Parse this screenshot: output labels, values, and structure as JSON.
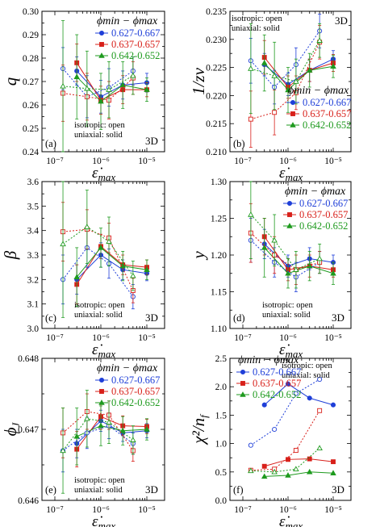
{
  "figure": {
    "x_axis_label": "ε̇max",
    "dim_label": "3D",
    "note_isotropic": "isotropic: open",
    "note_uniaxial": "uniaxial: solid",
    "legend_title": "ϕmin − ϕmax",
    "x_tick_labels": [
      "10⁻⁷",
      "10⁻⁶",
      "10⁻⁵"
    ]
  },
  "colors": {
    "0.627-0.667": "#1f3fd8",
    "0.637-0.657": "#d8201a",
    "0.642-0.652": "#1e9a1e"
  },
  "chart_data": [
    {
      "panel": "(a)",
      "type": "line",
      "ylabel": "q",
      "xscale": "log",
      "xlim": [
        1e-07,
        1e-05
      ],
      "ylim": [
        0.24,
        0.3
      ],
      "yticks": [
        0.24,
        0.25,
        0.26,
        0.27,
        0.28,
        0.29,
        0.3
      ],
      "ytick_labels": [
        "0.24",
        "0.25",
        "0.26",
        "0.27",
        "0.28",
        "0.29",
        "0.30"
      ],
      "legend_placement": "top-right",
      "note_placement": "bottom",
      "series": [
        {
          "name": "0.627-0.667",
          "style": "solid",
          "marker": "circle-filled",
          "x": [
            3e-07,
            1e-06,
            3e-06,
            1e-05
          ],
          "y": [
            0.2745,
            0.2635,
            0.2685,
            0.2695
          ],
          "err": [
            0.006,
            0.007,
            0.006,
            0.004
          ]
        },
        {
          "name": "0.637-0.657",
          "style": "solid",
          "marker": "square-filled",
          "x": [
            3e-07,
            1e-06,
            3e-06,
            1e-05
          ],
          "y": [
            0.278,
            0.262,
            0.2665,
            0.2665
          ],
          "err": [
            0.008,
            0.006,
            0.006,
            0.003
          ]
        },
        {
          "name": "0.642-0.652",
          "style": "solid",
          "marker": "triangle-filled",
          "x": [
            3e-07,
            1e-06,
            3e-06,
            1e-05
          ],
          "y": [
            0.272,
            0.2615,
            0.2685,
            0.2665
          ],
          "err": [
            0.018,
            0.012,
            0.01,
            0.005
          ]
        },
        {
          "name": "0.627-0.667",
          "style": "dotted",
          "marker": "circle-open",
          "x": [
            1.5e-07,
            5e-07,
            1.5e-06,
            5e-06
          ],
          "y": [
            0.2755,
            0.2635,
            0.2675,
            0.2745
          ],
          "err": [
            0.009,
            0.009,
            0.008,
            0.006
          ]
        },
        {
          "name": "0.637-0.657",
          "style": "dotted",
          "marker": "square-open",
          "x": [
            1.5e-07,
            5e-07,
            1.5e-06,
            5e-06
          ],
          "y": [
            0.265,
            0.2635,
            0.262,
            0.2715
          ],
          "err": [
            0.012,
            0.01,
            0.008,
            0.007
          ]
        },
        {
          "name": "0.642-0.652",
          "style": "dotted",
          "marker": "triangle-open",
          "x": [
            1.5e-07,
            5e-07,
            1.5e-06,
            5e-06
          ],
          "y": [
            0.268,
            0.267,
            0.2665,
            0.2725
          ],
          "err": [
            0.028,
            0.016,
            0.012,
            0.008
          ]
        }
      ]
    },
    {
      "panel": "(b)",
      "type": "line",
      "ylabel": "1/zν",
      "xscale": "log",
      "xlim": [
        1e-07,
        1e-05
      ],
      "ylim": [
        0.21,
        0.235
      ],
      "yticks": [
        0.21,
        0.215,
        0.22,
        0.225,
        0.23,
        0.235
      ],
      "ytick_labels": [
        "0.210",
        "0.215",
        "0.220",
        "0.225",
        "0.230",
        "0.235"
      ],
      "legend_placement": "bottom-right",
      "note_placement": "top-left",
      "series": [
        {
          "name": "0.627-0.667",
          "style": "solid",
          "marker": "circle-filled",
          "x": [
            3e-07,
            1e-06,
            3e-06,
            1e-05
          ],
          "y": [
            0.2255,
            0.222,
            0.2245,
            0.2265
          ],
          "err": [
            0.002,
            0.002,
            0.002,
            0.0015
          ]
        },
        {
          "name": "0.637-0.657",
          "style": "solid",
          "marker": "square-filled",
          "x": [
            3e-07,
            1e-06,
            3e-06,
            1e-05
          ],
          "y": [
            0.2268,
            0.2215,
            0.2245,
            0.2258
          ],
          "err": [
            0.003,
            0.002,
            0.002,
            0.0015
          ]
        },
        {
          "name": "0.642-0.652",
          "style": "solid",
          "marker": "triangle-filled",
          "x": [
            3e-07,
            1e-06,
            3e-06,
            1e-05
          ],
          "y": [
            0.2258,
            0.221,
            0.2245,
            0.2252
          ],
          "err": [
            0.005,
            0.004,
            0.003,
            0.002
          ]
        },
        {
          "name": "0.627-0.667",
          "style": "dotted",
          "marker": "circle-open",
          "x": [
            1.5e-07,
            5e-07,
            1.5e-06,
            5e-06
          ],
          "y": [
            0.2262,
            0.2215,
            0.2255,
            0.2315
          ],
          "err": [
            0.004,
            0.003,
            0.003,
            0.003
          ]
        },
        {
          "name": "0.637-0.657",
          "style": "dotted",
          "marker": "square-open",
          "x": [
            1.5e-07,
            5e-07,
            1.5e-06,
            5e-06
          ],
          "y": [
            0.2158,
            0.217,
            0.2205,
            0.2295
          ],
          "err": [
            0.005,
            0.004,
            0.003,
            0.003
          ]
        },
        {
          "name": "0.642-0.652",
          "style": "dotted",
          "marker": "triangle-open",
          "x": [
            1.5e-07,
            5e-07,
            1.5e-06,
            5e-06
          ],
          "y": [
            0.2248,
            0.2235,
            0.2225,
            0.2298
          ],
          "err": [
            0.008,
            0.006,
            0.004,
            0.003
          ]
        }
      ]
    },
    {
      "panel": "(c)",
      "type": "line",
      "ylabel": "β",
      "xscale": "log",
      "xlim": [
        1e-07,
        1e-05
      ],
      "ylim": [
        3.0,
        3.6
      ],
      "yticks": [
        3.0,
        3.1,
        3.2,
        3.3,
        3.4,
        3.5,
        3.6
      ],
      "ytick_labels": [
        "3.0",
        "3.1",
        "3.2",
        "3.3",
        "3.4",
        "3.5",
        "3.6"
      ],
      "legend_placement": "none",
      "note_placement": "bottom",
      "series": [
        {
          "name": "0.627-0.667",
          "style": "solid",
          "marker": "circle-filled",
          "x": [
            3e-07,
            1e-06,
            3e-06,
            1e-05
          ],
          "y": [
            3.2,
            3.3,
            3.24,
            3.225
          ],
          "err": [
            0.06,
            0.05,
            0.04,
            0.03
          ]
        },
        {
          "name": "0.637-0.657",
          "style": "solid",
          "marker": "square-filled",
          "x": [
            3e-07,
            1e-06,
            3e-06,
            1e-05
          ],
          "y": [
            3.18,
            3.335,
            3.26,
            3.25
          ],
          "err": [
            0.08,
            0.05,
            0.04,
            0.03
          ]
        },
        {
          "name": "0.642-0.652",
          "style": "solid",
          "marker": "triangle-filled",
          "x": [
            3e-07,
            1e-06,
            3e-06,
            1e-05
          ],
          "y": [
            3.21,
            3.33,
            3.255,
            3.24
          ],
          "err": [
            0.12,
            0.08,
            0.06,
            0.04
          ]
        },
        {
          "name": "0.627-0.667",
          "style": "dotted",
          "marker": "circle-open",
          "x": [
            1.5e-07,
            5e-07,
            1.5e-06,
            5e-06
          ],
          "y": [
            3.2,
            3.33,
            3.265,
            3.13
          ],
          "err": [
            0.1,
            0.08,
            0.06,
            0.05
          ]
        },
        {
          "name": "0.637-0.657",
          "style": "dotted",
          "marker": "square-open",
          "x": [
            1.5e-07,
            5e-07,
            1.5e-06,
            5e-06
          ],
          "y": [
            3.395,
            3.405,
            3.37,
            3.155
          ],
          "err": [
            0.12,
            0.08,
            0.06,
            0.05
          ]
        },
        {
          "name": "0.642-0.652",
          "style": "dotted",
          "marker": "triangle-open",
          "x": [
            1.5e-07,
            5e-07,
            1.5e-06,
            5e-06
          ],
          "y": [
            3.345,
            3.415,
            3.355,
            3.215
          ],
          "err": [
            0.3,
            0.15,
            0.1,
            0.06
          ]
        }
      ]
    },
    {
      "panel": "(d)",
      "type": "line",
      "ylabel": "y",
      "xscale": "log",
      "xlim": [
        1e-07,
        1e-05
      ],
      "ylim": [
        1.1,
        1.3
      ],
      "yticks": [
        1.1,
        1.15,
        1.2,
        1.25,
        1.3
      ],
      "ytick_labels": [
        "1.10",
        "1.15",
        "1.20",
        "1.25",
        "1.30"
      ],
      "legend_placement": "top-right",
      "note_placement": "bottom",
      "series": [
        {
          "name": "0.627-0.667",
          "style": "solid",
          "marker": "circle-filled",
          "x": [
            3e-07,
            1e-06,
            3e-06,
            1e-05
          ],
          "y": [
            1.215,
            1.185,
            1.195,
            1.19
          ],
          "err": [
            0.02,
            0.015,
            0.015,
            0.01
          ]
        },
        {
          "name": "0.637-0.657",
          "style": "solid",
          "marker": "square-filled",
          "x": [
            3e-07,
            1e-06,
            3e-06,
            1e-05
          ],
          "y": [
            1.225,
            1.18,
            1.185,
            1.18
          ],
          "err": [
            0.025,
            0.015,
            0.015,
            0.01
          ]
        },
        {
          "name": "0.642-0.652",
          "style": "solid",
          "marker": "triangle-filled",
          "x": [
            3e-07,
            1e-06,
            3e-06,
            1e-05
          ],
          "y": [
            1.21,
            1.175,
            1.185,
            1.175
          ],
          "err": [
            0.04,
            0.02,
            0.02,
            0.015
          ]
        },
        {
          "name": "0.627-0.667",
          "style": "dotted",
          "marker": "circle-open",
          "x": [
            1.5e-07,
            5e-07,
            1.5e-06,
            5e-06
          ],
          "y": [
            1.22,
            1.19,
            1.17,
            1.19
          ],
          "err": [
            0.03,
            0.02,
            0.02,
            0.015
          ]
        },
        {
          "name": "0.637-0.657",
          "style": "dotted",
          "marker": "square-open",
          "x": [
            1.5e-07,
            5e-07,
            1.5e-06,
            5e-06
          ],
          "y": [
            1.23,
            1.2,
            1.18,
            1.19
          ],
          "err": [
            0.04,
            0.025,
            0.02,
            0.015
          ]
        },
        {
          "name": "0.642-0.652",
          "style": "dotted",
          "marker": "triangle-open",
          "x": [
            1.5e-07,
            5e-07,
            1.5e-06,
            5e-06
          ],
          "y": [
            1.255,
            1.22,
            1.18,
            1.195
          ],
          "err": [
            0.06,
            0.035,
            0.025,
            0.02
          ]
        }
      ]
    },
    {
      "panel": "(e)",
      "type": "line",
      "ylabel": "ϕJ",
      "xscale": "log",
      "xlim": [
        1e-07,
        1e-05
      ],
      "ylim": [
        0.646,
        0.648
      ],
      "yticks": [
        0.646,
        0.647,
        0.648
      ],
      "ytick_labels": [
        "0.646",
        "0.647",
        "0.648"
      ],
      "legend_placement": "top-right",
      "note_placement": "bottom",
      "series": [
        {
          "name": "0.627-0.667",
          "style": "solid",
          "marker": "circle-filled",
          "x": [
            3e-07,
            1e-06,
            3e-06,
            1e-05
          ],
          "y": [
            0.6468,
            0.64712,
            0.64695,
            0.64698
          ],
          "err": [
            0.0002,
            0.00015,
            0.00012,
            0.0001
          ]
        },
        {
          "name": "0.637-0.657",
          "style": "solid",
          "marker": "square-filled",
          "x": [
            3e-07,
            1e-06,
            3e-06,
            1e-05
          ],
          "y": [
            0.64672,
            0.64718,
            0.64705,
            0.64704
          ],
          "err": [
            0.00025,
            0.00018,
            0.00014,
            0.0001
          ]
        },
        {
          "name": "0.642-0.652",
          "style": "solid",
          "marker": "triangle-filled",
          "x": [
            3e-07,
            1e-06,
            3e-06,
            1e-05
          ],
          "y": [
            0.6469,
            0.64705,
            0.64698,
            0.647
          ],
          "err": [
            0.0004,
            0.00028,
            0.0002,
            0.00015
          ]
        },
        {
          "name": "0.627-0.667",
          "style": "dotted",
          "marker": "circle-open",
          "x": [
            1.5e-07,
            5e-07,
            1.5e-06,
            5e-06
          ],
          "y": [
            0.6467,
            0.64695,
            0.64705,
            0.6468
          ],
          "err": [
            0.0003,
            0.00022,
            0.00018,
            0.00015
          ]
        },
        {
          "name": "0.637-0.657",
          "style": "dotted",
          "marker": "square-open",
          "x": [
            1.5e-07,
            5e-07,
            1.5e-06,
            5e-06
          ],
          "y": [
            0.64695,
            0.64725,
            0.6472,
            0.6467
          ],
          "err": [
            0.00035,
            0.00025,
            0.0002,
            0.00015
          ]
        },
        {
          "name": "0.642-0.652",
          "style": "dotted",
          "marker": "triangle-open",
          "x": [
            1.5e-07,
            5e-07,
            1.5e-06,
            5e-06
          ],
          "y": [
            0.6467,
            0.64715,
            0.6471,
            0.64685
          ],
          "err": [
            0.0006,
            0.0004,
            0.0003,
            0.0002
          ]
        }
      ]
    },
    {
      "panel": "(f)",
      "type": "line",
      "ylabel": "χ²/nf",
      "xscale": "log",
      "xlim": [
        1e-07,
        1e-05
      ],
      "ylim": [
        0.0,
        2.5
      ],
      "yticks": [
        0.0,
        0.5,
        1.0,
        1.5,
        2.0,
        2.5
      ],
      "ytick_labels": [
        "0.0",
        "0.5",
        "1.0",
        "1.5",
        "2.0",
        "2.5"
      ],
      "legend_placement": "top-left",
      "note_placement": "top-right",
      "series": [
        {
          "name": "0.627-0.667",
          "style": "solid",
          "marker": "circle-filled",
          "x": [
            3e-07,
            1e-06,
            3e-06,
            1e-05
          ],
          "y": [
            1.68,
            2.05,
            1.8,
            1.68
          ]
        },
        {
          "name": "0.637-0.657",
          "style": "solid",
          "marker": "square-filled",
          "x": [
            3e-07,
            1e-06,
            3e-06,
            1e-05
          ],
          "y": [
            0.6,
            0.72,
            0.73,
            0.68
          ]
        },
        {
          "name": "0.642-0.652",
          "style": "solid",
          "marker": "triangle-filled",
          "x": [
            3e-07,
            1e-06,
            3e-06,
            1e-05
          ],
          "y": [
            0.42,
            0.44,
            0.5,
            0.48
          ]
        },
        {
          "name": "0.627-0.667",
          "style": "dotted",
          "marker": "circle-open",
          "x": [
            1.5e-07,
            5e-07,
            1.5e-06,
            5e-06
          ],
          "y": [
            0.97,
            1.25,
            1.88,
            2.13
          ]
        },
        {
          "name": "0.637-0.657",
          "style": "dotted",
          "marker": "square-open",
          "x": [
            1.5e-07,
            5e-07,
            1.5e-06,
            5e-06
          ],
          "y": [
            0.53,
            0.55,
            0.88,
            1.58
          ]
        },
        {
          "name": "0.642-0.652",
          "style": "dotted",
          "marker": "triangle-open",
          "x": [
            1.5e-07,
            5e-07,
            1.5e-06,
            5e-06
          ],
          "y": [
            0.52,
            0.5,
            0.55,
            0.92
          ]
        }
      ]
    }
  ]
}
